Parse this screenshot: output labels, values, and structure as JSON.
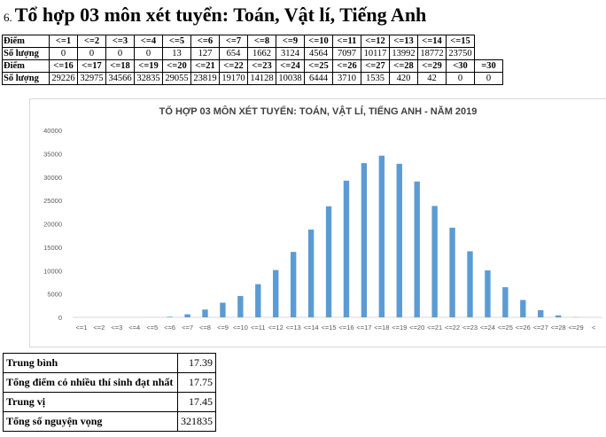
{
  "title": {
    "number": "6.",
    "text": "Tổ hợp 03 môn xét tuyển: Toán, Vật lí, Tiếng Anh"
  },
  "score_table": {
    "rows": [
      {
        "label": "Điểm",
        "cells": [
          "<=1",
          "<=2",
          "<=3",
          "<=4",
          "<=5",
          "<=6",
          "<=7",
          "<=8",
          "<=9",
          "<=10",
          "<=11",
          "<=12",
          "<=13",
          "<=14",
          "<=15"
        ]
      },
      {
        "label": "Số lượng",
        "cells": [
          "0",
          "0",
          "0",
          "0",
          "13",
          "127",
          "654",
          "1662",
          "3124",
          "4564",
          "7097",
          "10117",
          "13992",
          "18772",
          "23750"
        ]
      },
      {
        "label": "Điểm",
        "cells": [
          "<=16",
          "<=17",
          "<=18",
          "<=19",
          "<=20",
          "<=21",
          "<=22",
          "<=23",
          "<=24",
          "<=25",
          "<=26",
          "<=27",
          "<=28",
          "<=29",
          "<30",
          "=30"
        ]
      },
      {
        "label": "Số lượng",
        "cells": [
          "29226",
          "32975",
          "34566",
          "32835",
          "29055",
          "23819",
          "19170",
          "14128",
          "10038",
          "6444",
          "3710",
          "1535",
          "420",
          "42",
          "0",
          "0"
        ]
      }
    ]
  },
  "chart_data": {
    "type": "bar",
    "title": "TỔ HỢP 03 MÔN XÉT TUYỂN: TOÁN, VẬT LÍ, TIẾNG ANH - NĂM 2019",
    "categories": [
      "<=1",
      "<=2",
      "<=3",
      "<=4",
      "<=5",
      "<=6",
      "<=7",
      "<=8",
      "<=9",
      "<=10",
      "<=11",
      "<=12",
      "<=13",
      "<=14",
      "<=15",
      "<=16",
      "<=17",
      "<=18",
      "<=19",
      "<=20",
      "<=21",
      "<=22",
      "<=23",
      "<=24",
      "<=25",
      "<=26",
      "<=27",
      "<=28",
      "<=29",
      "<30"
    ],
    "tick_labels": [
      "<=1",
      "<=2",
      "<=3",
      "<=4",
      "<=5",
      "<=6",
      "<=7",
      "<=8",
      "<=9",
      "<=10",
      "<=11",
      "<=12",
      "<=13",
      "<=14",
      "<=15",
      "<=16",
      "<=17",
      "<=18",
      "<=19",
      "<=20",
      "<=21",
      "<=22",
      "<=23",
      "<=24",
      "<=25",
      "<=26",
      "<=27",
      "<=28",
      "<=29",
      "<"
    ],
    "values": [
      0,
      0,
      0,
      0,
      13,
      127,
      654,
      1662,
      3124,
      4564,
      7097,
      10117,
      13992,
      18772,
      23750,
      29226,
      32975,
      34566,
      32835,
      29055,
      23819,
      19170,
      14128,
      10038,
      6444,
      3710,
      1535,
      420,
      42,
      0
    ],
    "ylim": [
      0,
      40000
    ],
    "yticks": [
      "0",
      "5000",
      "10000",
      "15000",
      "20000",
      "25000",
      "30000",
      "35000",
      "40000"
    ],
    "bar_color": "#5b9bd5",
    "grid": false,
    "legend": "none"
  },
  "stats": [
    {
      "label": "Trung bình",
      "value": "17.39"
    },
    {
      "label": "Tổng điểm có nhiều thí sinh đạt nhất",
      "value": "17.75"
    },
    {
      "label": "Trung vị",
      "value": "17.45"
    },
    {
      "label": "Tổng số nguyện vọng",
      "value": "321835"
    }
  ]
}
